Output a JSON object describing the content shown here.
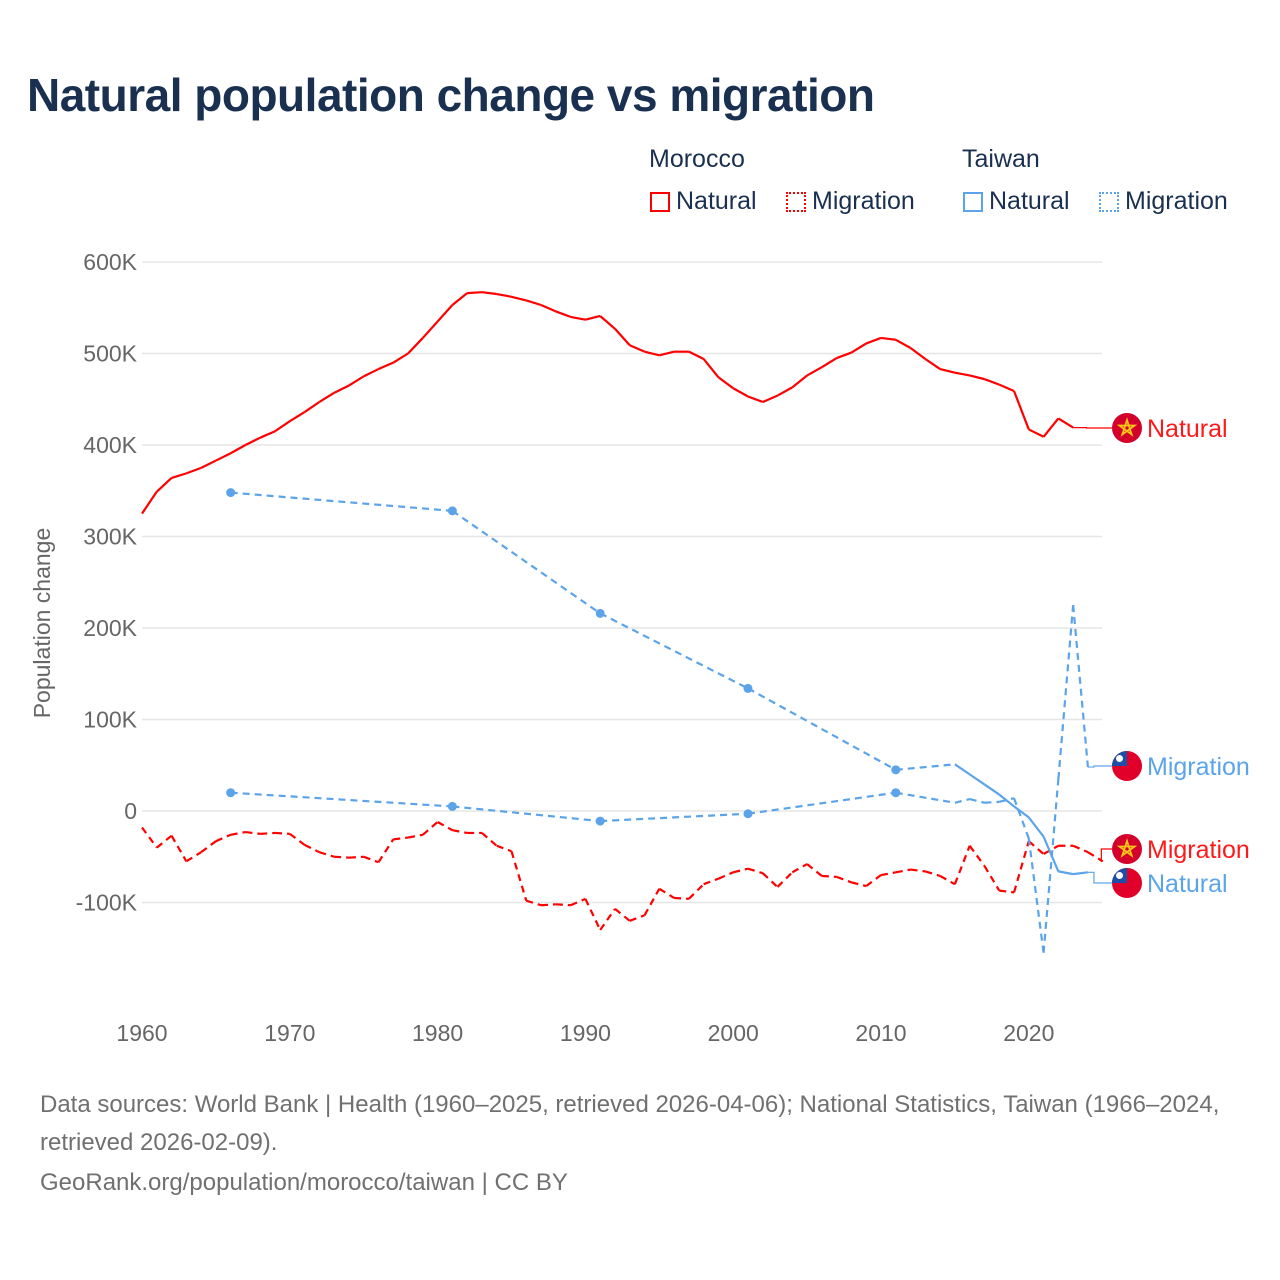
{
  "title": "Natural population change vs migration",
  "legend": {
    "groups": [
      {
        "name": "Morocco",
        "items": [
          {
            "label": "Natural",
            "style": "solid",
            "color": "#ff0000"
          },
          {
            "label": "Migration",
            "style": "dotted",
            "color": "#ff0000"
          }
        ]
      },
      {
        "name": "Taiwan",
        "items": [
          {
            "label": "Natural",
            "style": "solid",
            "color": "#5ca4ea"
          },
          {
            "label": "Migration",
            "style": "dotted",
            "color": "#5ca4ea"
          }
        ]
      }
    ]
  },
  "chart_data": {
    "type": "line",
    "title": "Natural population change vs migration",
    "xlabel": "",
    "ylabel": "Population change",
    "xlim": [
      1960,
      2025
    ],
    "ylim": [
      -200000,
      600000
    ],
    "x_ticks": [
      "1960",
      "1970",
      "1980",
      "1990",
      "2000",
      "2010",
      "2020"
    ],
    "y_ticks": [
      {
        "v": 600000,
        "label": "600K"
      },
      {
        "v": 500000,
        "label": "500K"
      },
      {
        "v": 400000,
        "label": "400K"
      },
      {
        "v": 300000,
        "label": "300K"
      },
      {
        "v": 200000,
        "label": "200K"
      },
      {
        "v": 100000,
        "label": "100K"
      },
      {
        "v": 0,
        "label": "0"
      },
      {
        "v": -100000,
        "label": "-100K"
      }
    ],
    "grid": true,
    "series": [
      {
        "name": "Morocco Natural",
        "end_label": "Natural",
        "color": "#ff0000",
        "style": "solid",
        "x": [
          1960,
          1961,
          1962,
          1963,
          1964,
          1965,
          1966,
          1967,
          1968,
          1969,
          1970,
          1971,
          1972,
          1973,
          1974,
          1975,
          1976,
          1977,
          1978,
          1979,
          1980,
          1981,
          1982,
          1983,
          1984,
          1985,
          1986,
          1987,
          1988,
          1989,
          1990,
          1991,
          1992,
          1993,
          1994,
          1995,
          1996,
          1997,
          1998,
          1999,
          2000,
          2001,
          2002,
          2003,
          2004,
          2005,
          2006,
          2007,
          2008,
          2009,
          2010,
          2011,
          2012,
          2013,
          2014,
          2015,
          2016,
          2017,
          2018,
          2019,
          2020,
          2021,
          2022,
          2023
        ],
        "y": [
          325000,
          349000,
          364000,
          369000,
          375000,
          383000,
          391000,
          400000,
          408000,
          415000,
          426000,
          436000,
          447000,
          457000,
          465000,
          475000,
          483000,
          490000,
          500000,
          517000,
          535000,
          553000,
          566000,
          567000,
          565000,
          562000,
          558000,
          553000,
          546000,
          540000,
          537000,
          541000,
          527000,
          509000,
          502000,
          498000,
          502000,
          502000,
          494000,
          474000,
          462000,
          453000,
          447000,
          454000,
          463000,
          476000,
          485000,
          495000,
          501000,
          511000,
          517000,
          515000,
          506000,
          494000,
          483000,
          479000,
          476000,
          472000,
          466000,
          459000,
          417000,
          409000,
          429000,
          419000
        ]
      },
      {
        "name": "Morocco Migration",
        "end_label": "Migration",
        "color": "#ff0000",
        "style": "dashed",
        "x": [
          1960,
          1961,
          1962,
          1963,
          1964,
          1965,
          1966,
          1967,
          1968,
          1969,
          1970,
          1971,
          1972,
          1973,
          1974,
          1975,
          1976,
          1977,
          1978,
          1979,
          1980,
          1981,
          1982,
          1983,
          1984,
          1985,
          1986,
          1987,
          1988,
          1989,
          1990,
          1991,
          1992,
          1993,
          1994,
          1995,
          1996,
          1997,
          1998,
          1999,
          2000,
          2001,
          2002,
          2003,
          2004,
          2005,
          2006,
          2007,
          2008,
          2009,
          2010,
          2011,
          2012,
          2013,
          2014,
          2015,
          2016,
          2017,
          2018,
          2019,
          2020,
          2021,
          2022,
          2023,
          2024,
          2025
        ],
        "y": [
          -18000,
          -40000,
          -27000,
          -55000,
          -45000,
          -33000,
          -26000,
          -23000,
          -25000,
          -24000,
          -25000,
          -37000,
          -45000,
          -50000,
          -51000,
          -50000,
          -56000,
          -31000,
          -29000,
          -26000,
          -12000,
          -21000,
          -24000,
          -24000,
          -38000,
          -44000,
          -98000,
          -103000,
          -102000,
          -103000,
          -96000,
          -130000,
          -107000,
          -120000,
          -114000,
          -85000,
          -95000,
          -96000,
          -80000,
          -74000,
          -67000,
          -63000,
          -68000,
          -83000,
          -67000,
          -58000,
          -71000,
          -72000,
          -78000,
          -82000,
          -70000,
          -67000,
          -64000,
          -66000,
          -71000,
          -80000,
          -38000,
          -60000,
          -87000,
          -89000,
          -33000,
          -47000,
          -38000,
          -38000,
          -45000,
          -55000
        ]
      },
      {
        "name": "Taiwan Migration",
        "end_label": "Migration",
        "color": "#5ca4ea",
        "style": "dashed",
        "x": [
          1966,
          1981,
          1991,
          2001,
          2011,
          2015,
          2016,
          2017,
          2018,
          2019,
          2020,
          2021,
          2022,
          2023,
          2024
        ],
        "y": [
          20000,
          5000,
          -11000,
          -3000,
          20000,
          9000,
          13000,
          9000,
          10000,
          14000,
          -30000,
          -155000,
          35000,
          225000,
          48000
        ]
      },
      {
        "name": "Taiwan Natural",
        "end_label": "Natural",
        "color": "#5ca4ea",
        "style": "solid",
        "x": [
          1966,
          1981,
          1991,
          2001,
          2011,
          2015,
          2016,
          2017,
          2018,
          2019,
          2020,
          2021,
          2022,
          2023,
          2024
        ],
        "y": [
          348000,
          328000,
          216000,
          134000,
          45000,
          51000,
          40000,
          29000,
          18000,
          5000,
          -7000,
          -28000,
          -66000,
          -69000,
          -67000
        ]
      }
    ]
  },
  "footer": {
    "sources": "Data sources: World Bank | Health (1960–2025, retrieved 2026-04-06); National Statistics, Taiwan (1966–2024, retrieved 2026-02-09).",
    "credit": "GeoRank.org/population/morocco/taiwan | CC BY"
  }
}
